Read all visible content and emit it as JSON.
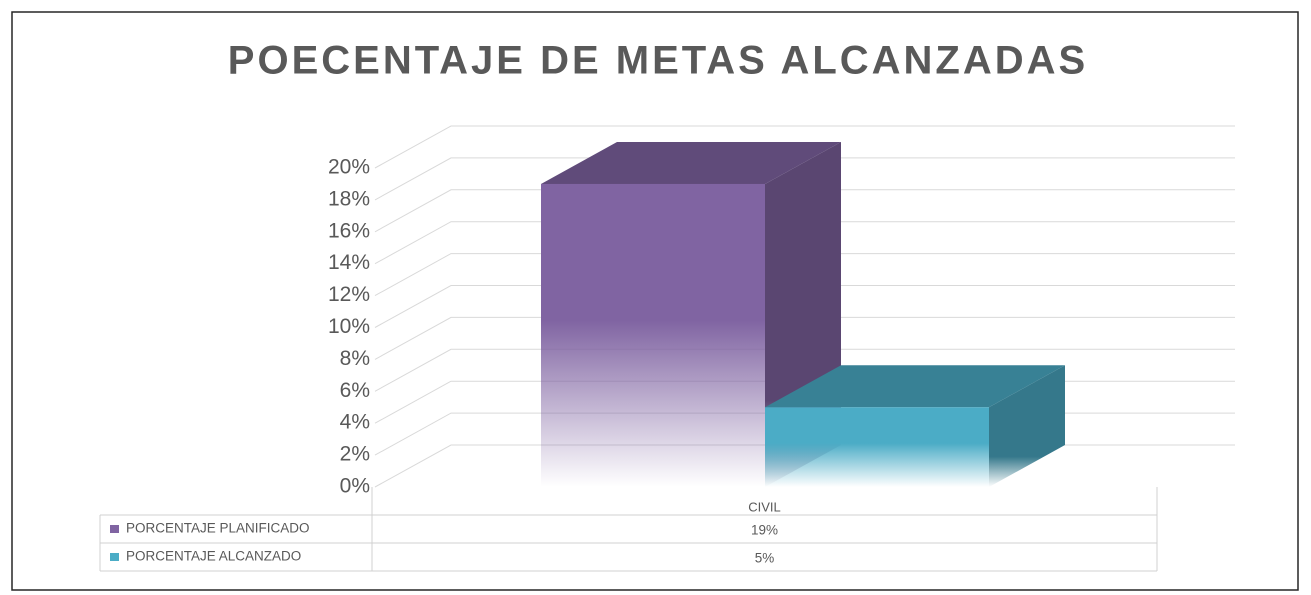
{
  "chart_data": {
    "type": "bar3d",
    "title": "POECENTAJE DE METAS ALCANZADAS",
    "categories": [
      "CIVIL"
    ],
    "series": [
      {
        "name": "PORCENTAJE PLANIFICADO",
        "color": "#8064a2",
        "values": [
          19
        ],
        "value_labels": [
          "19%"
        ]
      },
      {
        "name": "PORCENTAJE ALCANZADO",
        "color": "#4bacc6",
        "values": [
          5
        ],
        "value_labels": [
          "5%"
        ]
      }
    ],
    "ylim": [
      0,
      20
    ],
    "yticks": [
      {
        "value": 0,
        "label": "0%"
      },
      {
        "value": 2,
        "label": "2%"
      },
      {
        "value": 4,
        "label": "4%"
      },
      {
        "value": 6,
        "label": "6%"
      },
      {
        "value": 8,
        "label": "8%"
      },
      {
        "value": 10,
        "label": "10%"
      },
      {
        "value": 12,
        "label": "12%"
      },
      {
        "value": 14,
        "label": "14%"
      },
      {
        "value": 16,
        "label": "16%"
      },
      {
        "value": 18,
        "label": "18%"
      },
      {
        "value": 20,
        "label": "20%"
      }
    ],
    "grid": true,
    "legend": "table"
  }
}
